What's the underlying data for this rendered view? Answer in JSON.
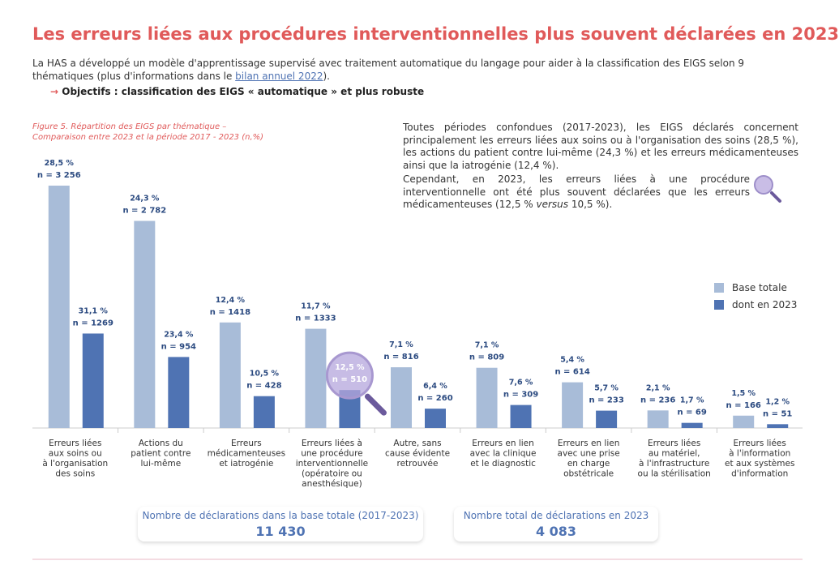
{
  "title": "Les erreurs liées aux procédures interventionnelles plus souvent déclarées en 2023",
  "intro": {
    "text_before": "La HAS a développé un modèle d'apprentissage supervisé avec traitement automatique du langage pour aider à la classification des EIGS selon 9 thématiques (plus d'informations dans le ",
    "link": "bilan annuel 2022",
    "text_after": ")."
  },
  "objective": {
    "arrow": "→",
    "text": "Objectifs : classification des EIGS « automatique » et plus robuste"
  },
  "paragraphs": [
    {
      "parts": [
        "Toutes périodes confondues (2017-2023), les EIGS déclarés concernent principalement les erreurs liées aux soins ou à l'organisation des soins (28,5 %), les actions du patient contre lui-même (24,3 %) et les erreurs médicamenteuses ainsi que la iatrogénie (12,4 %)."
      ]
    },
    {
      "parts": [
        "Cependant, en 2023, les erreurs liées à une procédure interventionnelle ont été plus souvent déclarées que les erreurs médicamenteuses (12,5 % ",
        "versus",
        " 10,5 %)."
      ]
    }
  ],
  "totals": [
    {
      "label": "Nombre de déclarations dans la base totale (2017-2023)",
      "value": "11 430"
    },
    {
      "label": "Nombre total de déclarations en 2023",
      "value": "4 083"
    }
  ],
  "chart_data": {
    "type": "bar",
    "caption": [
      "Figure 5. Répartition des EIGS par thématique –",
      "Comparaison entre 2023 et la période 2017 - 2023 (n,%)"
    ],
    "categories": [
      [
        "Erreurs liées",
        "aux soins ou",
        "à l'organisation",
        "des soins"
      ],
      [
        "Actions du",
        "patient contre",
        "lui-même"
      ],
      [
        "Erreurs",
        "médicamenteuses",
        "et iatrogénie"
      ],
      [
        "Erreurs liées à",
        "une procédure",
        "interventionnelle",
        "(opératoire ou",
        "anesthésique)"
      ],
      [
        "Autre, sans",
        "cause évidente",
        "retrouvée"
      ],
      [
        "Erreurs en lien",
        "avec la clinique",
        "et le diagnostic"
      ],
      [
        "Erreurs en lien",
        "avec une prise",
        "en charge",
        "obstétricale"
      ],
      [
        "Erreurs liées",
        "au matériel,",
        "à l'infrastructure",
        "ou la stérilisation"
      ],
      [
        "Erreurs liées",
        "à l'information",
        "et aux systèmes",
        "d'information"
      ]
    ],
    "series": [
      {
        "name": "Base totale",
        "color": "#a8bcd8",
        "values": [
          3256,
          2782,
          1418,
          1333,
          816,
          809,
          614,
          236,
          166
        ],
        "value_labels": [
          "n = 3 256",
          "n = 2 782",
          "n = 1418",
          "n = 1333",
          "n = 816",
          "n = 809",
          "n = 614",
          "n = 236",
          "n = 166"
        ],
        "percent_labels": [
          "28,5 %",
          "24,3 %",
          "12,4 %",
          "11,7 %",
          "7,1 %",
          "7,1 %",
          "5,4 %",
          "2,1 %",
          "1,5 %"
        ]
      },
      {
        "name": "dont en 2023",
        "color": "#4f73b3",
        "values": [
          1269,
          954,
          428,
          510,
          260,
          309,
          233,
          69,
          51
        ],
        "value_labels": [
          "n = 1269",
          "n = 954",
          "n = 428",
          "n = 510",
          "n = 260",
          "n = 309",
          "n = 233",
          "n = 69",
          "n = 51"
        ],
        "percent_labels": [
          "31,1 %",
          "23,4 %",
          "10,5 %",
          "12,5 %",
          "6,4 %",
          "7,6 %",
          "5,7 %",
          "1,7 %",
          "1,2 %"
        ]
      }
    ],
    "legend": "right"
  }
}
